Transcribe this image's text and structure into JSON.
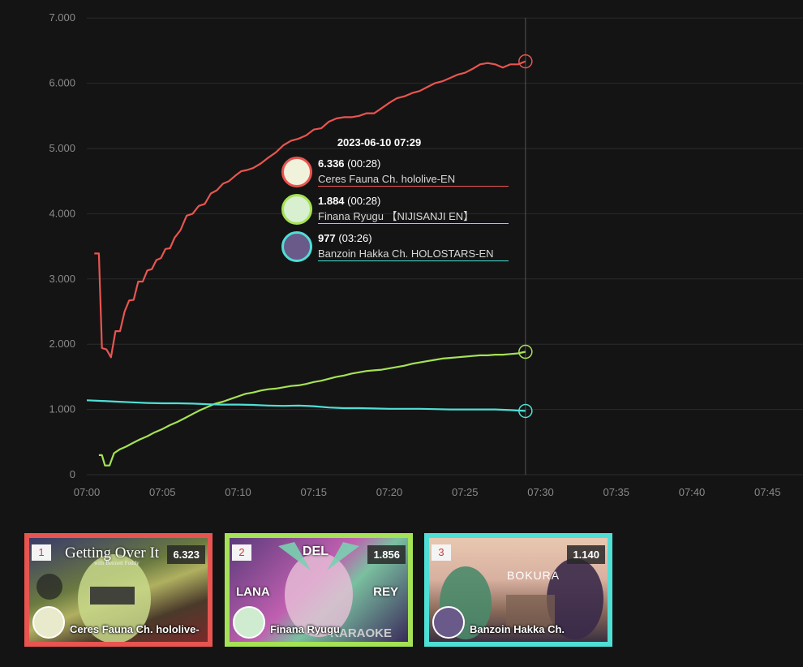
{
  "chart_data": {
    "type": "line",
    "xlabel": "",
    "ylabel": "",
    "x_ticks": [
      "07:00",
      "07:05",
      "07:10",
      "07:15",
      "07:20",
      "07:25",
      "07:30",
      "07:35",
      "07:40",
      "07:45"
    ],
    "y_ticks": [
      "0",
      "1.000",
      "2.000",
      "3.000",
      "4.000",
      "5.000",
      "6.000",
      "7.000"
    ],
    "ylim": [
      0,
      7000
    ],
    "xlim_minutes": [
      0,
      47.5
    ],
    "grid": true,
    "series": [
      {
        "name": "Ceres Fauna Ch. hololive-EN",
        "color": "#e85550",
        "points": [
          [
            0.5,
            3390
          ],
          [
            0.8,
            3390
          ],
          [
            1.0,
            1940
          ],
          [
            1.3,
            1920
          ],
          [
            1.6,
            1800
          ],
          [
            1.9,
            2200
          ],
          [
            2.2,
            2200
          ],
          [
            2.5,
            2500
          ],
          [
            2.8,
            2670
          ],
          [
            3.1,
            2680
          ],
          [
            3.4,
            2960
          ],
          [
            3.7,
            2960
          ],
          [
            4.0,
            3130
          ],
          [
            4.3,
            3150
          ],
          [
            4.6,
            3290
          ],
          [
            4.9,
            3320
          ],
          [
            5.2,
            3460
          ],
          [
            5.5,
            3470
          ],
          [
            5.8,
            3630
          ],
          [
            6.2,
            3750
          ],
          [
            6.6,
            3970
          ],
          [
            7.0,
            4000
          ],
          [
            7.4,
            4120
          ],
          [
            7.8,
            4150
          ],
          [
            8.2,
            4310
          ],
          [
            8.6,
            4360
          ],
          [
            9.0,
            4460
          ],
          [
            9.4,
            4500
          ],
          [
            9.8,
            4580
          ],
          [
            10.2,
            4650
          ],
          [
            10.6,
            4670
          ],
          [
            11.0,
            4700
          ],
          [
            11.5,
            4770
          ],
          [
            12.0,
            4860
          ],
          [
            12.5,
            4940
          ],
          [
            13.0,
            5050
          ],
          [
            13.5,
            5120
          ],
          [
            14.0,
            5150
          ],
          [
            14.5,
            5200
          ],
          [
            15.0,
            5290
          ],
          [
            15.5,
            5310
          ],
          [
            16.0,
            5410
          ],
          [
            16.5,
            5460
          ],
          [
            17.0,
            5480
          ],
          [
            17.5,
            5480
          ],
          [
            18.0,
            5500
          ],
          [
            18.5,
            5540
          ],
          [
            19.0,
            5540
          ],
          [
            19.5,
            5620
          ],
          [
            20.0,
            5700
          ],
          [
            20.5,
            5770
          ],
          [
            21.0,
            5800
          ],
          [
            21.5,
            5850
          ],
          [
            22.0,
            5880
          ],
          [
            22.5,
            5940
          ],
          [
            23.0,
            6000
          ],
          [
            23.5,
            6030
          ],
          [
            24.0,
            6080
          ],
          [
            24.5,
            6130
          ],
          [
            25.0,
            6160
          ],
          [
            25.5,
            6220
          ],
          [
            26.0,
            6290
          ],
          [
            26.5,
            6310
          ],
          [
            27.0,
            6290
          ],
          [
            27.5,
            6240
          ],
          [
            28.0,
            6290
          ],
          [
            28.5,
            6290
          ],
          [
            29.0,
            6336
          ]
        ]
      },
      {
        "name": "Finana Ryugu 【NIJISANJI EN】",
        "color": "#a5e255",
        "points": [
          [
            0.8,
            300
          ],
          [
            1.0,
            300
          ],
          [
            1.2,
            140
          ],
          [
            1.5,
            140
          ],
          [
            1.8,
            330
          ],
          [
            2.2,
            390
          ],
          [
            2.6,
            430
          ],
          [
            3.0,
            480
          ],
          [
            3.5,
            540
          ],
          [
            4.0,
            590
          ],
          [
            4.5,
            650
          ],
          [
            5.0,
            700
          ],
          [
            5.5,
            760
          ],
          [
            6.0,
            810
          ],
          [
            6.5,
            870
          ],
          [
            7.0,
            930
          ],
          [
            7.5,
            990
          ],
          [
            8.0,
            1040
          ],
          [
            8.5,
            1090
          ],
          [
            9.0,
            1120
          ],
          [
            9.5,
            1160
          ],
          [
            10.0,
            1200
          ],
          [
            10.5,
            1240
          ],
          [
            11.0,
            1260
          ],
          [
            11.5,
            1290
          ],
          [
            12.0,
            1310
          ],
          [
            12.5,
            1320
          ],
          [
            13.0,
            1340
          ],
          [
            13.5,
            1360
          ],
          [
            14.0,
            1370
          ],
          [
            14.5,
            1390
          ],
          [
            15.0,
            1420
          ],
          [
            15.5,
            1440
          ],
          [
            16.0,
            1470
          ],
          [
            16.5,
            1500
          ],
          [
            17.0,
            1520
          ],
          [
            17.5,
            1550
          ],
          [
            18.0,
            1570
          ],
          [
            18.5,
            1590
          ],
          [
            19.0,
            1600
          ],
          [
            19.5,
            1610
          ],
          [
            20.0,
            1630
          ],
          [
            20.5,
            1650
          ],
          [
            21.0,
            1670
          ],
          [
            21.5,
            1700
          ],
          [
            22.0,
            1720
          ],
          [
            22.5,
            1740
          ],
          [
            23.0,
            1760
          ],
          [
            23.5,
            1780
          ],
          [
            24.0,
            1790
          ],
          [
            24.5,
            1800
          ],
          [
            25.0,
            1810
          ],
          [
            25.5,
            1820
          ],
          [
            26.0,
            1830
          ],
          [
            26.5,
            1830
          ],
          [
            27.0,
            1840
          ],
          [
            27.5,
            1840
          ],
          [
            28.0,
            1850
          ],
          [
            28.5,
            1860
          ],
          [
            29.0,
            1884
          ]
        ]
      },
      {
        "name": "Banzoin Hakka Ch. HOLOSTARS-EN",
        "color": "#4fdfd6",
        "points": [
          [
            0.0,
            1140
          ],
          [
            1.0,
            1130
          ],
          [
            2.0,
            1120
          ],
          [
            3.0,
            1110
          ],
          [
            4.0,
            1100
          ],
          [
            5.0,
            1095
          ],
          [
            6.0,
            1095
          ],
          [
            7.0,
            1090
          ],
          [
            8.0,
            1080
          ],
          [
            9.0,
            1075
          ],
          [
            10.0,
            1075
          ],
          [
            11.0,
            1070
          ],
          [
            12.0,
            1060
          ],
          [
            13.0,
            1055
          ],
          [
            14.0,
            1060
          ],
          [
            15.0,
            1050
          ],
          [
            16.0,
            1030
          ],
          [
            17.0,
            1020
          ],
          [
            18.0,
            1020
          ],
          [
            19.0,
            1015
          ],
          [
            20.0,
            1010
          ],
          [
            21.0,
            1010
          ],
          [
            22.0,
            1010
          ],
          [
            23.0,
            1005
          ],
          [
            24.0,
            1000
          ],
          [
            25.0,
            1000
          ],
          [
            26.0,
            1000
          ],
          [
            27.0,
            1000
          ],
          [
            28.0,
            990
          ],
          [
            29.0,
            977
          ]
        ]
      }
    ],
    "crosshair_minute": 29.0
  },
  "tooltip": {
    "time": "2023-06-10 07:29",
    "rows": [
      {
        "value": "6.336",
        "sub": "(00:28)",
        "name": "Ceres Fauna Ch. hololive-EN",
        "color": "#e85550"
      },
      {
        "value": "1.884",
        "sub": "(00:28)",
        "name": "Finana Ryugu 【NIJISANJI EN】",
        "color": "#a5e255"
      },
      {
        "value": "977",
        "sub": "(03:26)",
        "name": "Banzoin Hakka Ch. HOLOSTARS-EN",
        "color": "#4fdfd6"
      }
    ]
  },
  "cards": [
    {
      "rank": "1",
      "count": "6.323",
      "name": "Ceres Fauna Ch. hololive-",
      "color": "#e85550",
      "thumb_text": "Getting Over It",
      "thumb_sub": "with Bennett Foddy"
    },
    {
      "rank": "2",
      "count": "1.856",
      "name": "Finana Ryugu",
      "color": "#a5e255",
      "thumb_text": "DEL",
      "thumb_sub": "KARAOKE"
    },
    {
      "rank": "3",
      "count": "1.140",
      "name": "Banzoin Hakka Ch.",
      "color": "#4fdfd6",
      "thumb_text": "BOKURA",
      "thumb_sub": ""
    }
  ]
}
